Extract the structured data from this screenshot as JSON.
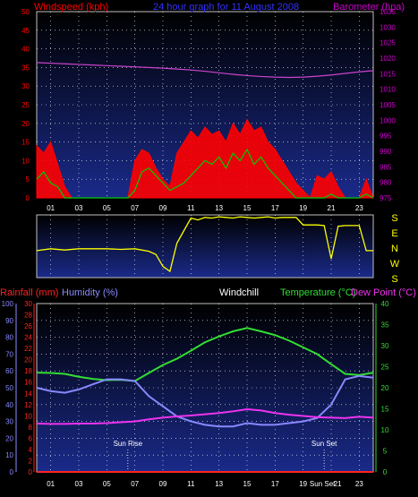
{
  "colors": {
    "background": "#000000",
    "plot_top": "#000000",
    "plot_bottom": "#1a2a8a",
    "grid": "#ffffff",
    "wind_axis": "#ff0000",
    "baro_axis": "#cc00cc",
    "wind_avg": "#00cc00",
    "wind_gust": "#ff0000",
    "baro_line": "#cc44cc",
    "dir_line": "#ffff00",
    "dir_labels": "#ffff00",
    "rain_axis": "#ff2222",
    "hum_axis": "#8888ff",
    "temp_axis": "#33dd33",
    "humidity_line": "#8888ff",
    "temp_line": "#33dd33",
    "dew_line": "#ee33ee",
    "rain_line": "#ff2222",
    "windchill": "#ffffff"
  },
  "top_chart": {
    "title": "24 hour graph for  11 August 2008",
    "left_label": "Windspeed (kph)",
    "right_label": "Barometer (hpa)",
    "left_ticks": [
      "0",
      "5",
      "10",
      "15",
      "20",
      "25",
      "30",
      "35",
      "40",
      "45",
      "50"
    ],
    "right_ticks": [
      "975",
      "980",
      "985",
      "990",
      "995",
      "1000",
      "1005",
      "1010",
      "1015",
      "1020",
      "1025",
      "1030",
      "1035"
    ],
    "x_ticks": [
      "01",
      "03",
      "05",
      "07",
      "09",
      "11",
      "13",
      "15",
      "17",
      "19",
      "21",
      "23"
    ]
  },
  "direction_chart": {
    "labels": [
      "S",
      "E",
      "N",
      "W",
      "S"
    ]
  },
  "bottom_chart": {
    "rain_label": "Rainfall (mm)",
    "hum_label": "Humidity (%)",
    "chill_label": "Windchill",
    "temp_label": "Temperature (°C)",
    "dew_label": "Dew Point (°C)",
    "hum_ticks": [
      "0",
      "10",
      "20",
      "30",
      "40",
      "50",
      "60",
      "70",
      "80",
      "90",
      "100"
    ],
    "rain_ticks": [
      "0",
      "2",
      "4",
      "6",
      "8",
      "10",
      "12",
      "14",
      "16",
      "18",
      "20",
      "22",
      "24",
      "26",
      "28",
      "30"
    ],
    "temp_ticks": [
      "0",
      "5",
      "10",
      "15",
      "20",
      "25",
      "30",
      "35",
      "40"
    ],
    "x_ticks": [
      "01",
      "03",
      "05",
      "07",
      "09",
      "11",
      "13",
      "15",
      "17",
      "19",
      "21",
      "23"
    ],
    "sunrise_label": "Sun Rise",
    "sunset_label": "Sun Set",
    "sunset_axis_label": "Sun Set",
    "sunset_axis_tick": "21"
  },
  "chart_data": [
    {
      "type": "line",
      "x_unit": "hour",
      "xlim": [
        0,
        24
      ],
      "ylim_left": [
        0,
        50
      ],
      "ylim_right": [
        975,
        1035
      ],
      "grid": true,
      "series": [
        {
          "name": "Windspeed (kph)",
          "axis": "left",
          "x": [
            0,
            0.5,
            1,
            1.5,
            2,
            2.5,
            3,
            3.5,
            4,
            4.5,
            5,
            5.5,
            6,
            6.5,
            7,
            7.5,
            8,
            8.5,
            9,
            9.5,
            10,
            10.5,
            11,
            11.5,
            12,
            12.5,
            13,
            13.5,
            14,
            14.5,
            15,
            15.5,
            16,
            16.5,
            17,
            17.5,
            18,
            18.5,
            19,
            19.5,
            20,
            20.5,
            21,
            21.5,
            22,
            22.5,
            23,
            23.5,
            24
          ],
          "y": [
            5,
            7,
            4,
            3,
            0,
            0,
            0,
            0,
            0,
            0,
            0,
            0,
            0,
            0,
            2,
            7,
            8,
            6,
            4,
            2,
            3,
            4,
            6,
            8,
            10,
            9,
            11,
            8,
            12,
            10,
            13,
            9,
            11,
            8,
            6,
            4,
            2,
            0,
            0,
            0,
            0,
            0,
            1,
            0,
            0,
            0,
            0,
            1,
            0
          ]
        },
        {
          "name": "Wind gust",
          "axis": "left",
          "x": [
            0,
            0.5,
            1,
            1.5,
            2,
            2.5,
            3,
            3.5,
            4,
            4.5,
            5,
            5.5,
            6,
            6.5,
            7,
            7.5,
            8,
            8.5,
            9,
            9.5,
            10,
            10.5,
            11,
            11.5,
            12,
            12.5,
            13,
            13.5,
            14,
            14.5,
            15,
            15.5,
            16,
            16.5,
            17,
            17.5,
            18,
            18.5,
            19,
            19.5,
            20,
            20.5,
            21,
            21.5,
            22,
            22.5,
            23,
            23.5,
            24
          ],
          "y": [
            14,
            12,
            15,
            9,
            3,
            0,
            0,
            0,
            0,
            0,
            0,
            0,
            0,
            0,
            10,
            13,
            12,
            8,
            5,
            3,
            12,
            15,
            18,
            16,
            19,
            17,
            18,
            15,
            20,
            17,
            21,
            18,
            19,
            15,
            13,
            10,
            7,
            4,
            2,
            0,
            6,
            5,
            7,
            3,
            0,
            0,
            0,
            5,
            0
          ]
        },
        {
          "name": "Barometer (hpa)",
          "axis": "right",
          "x": [
            0,
            1,
            2,
            3,
            4,
            5,
            6,
            7,
            8,
            9,
            10,
            11,
            12,
            13,
            14,
            15,
            16,
            17,
            18,
            19,
            20,
            21,
            22,
            23,
            24
          ],
          "y": [
            1018.6,
            1018.4,
            1018.2,
            1018.0,
            1017.8,
            1017.6,
            1017.4,
            1017.2,
            1017.0,
            1016.8,
            1016.5,
            1016.2,
            1015.8,
            1015.3,
            1014.8,
            1014.4,
            1014.1,
            1013.9,
            1013.8,
            1013.9,
            1014.2,
            1014.6,
            1015.1,
            1015.6,
            1016.0
          ]
        }
      ]
    },
    {
      "type": "line",
      "x_unit": "hour",
      "xlim": [
        0,
        24
      ],
      "series": [
        {
          "name": "Wind direction",
          "x": [
            0,
            1,
            2,
            3,
            4,
            5,
            6,
            7,
            8,
            8.5,
            9,
            9.5,
            10,
            10.5,
            11,
            11.5,
            12,
            12.5,
            13,
            13.5,
            14,
            14.5,
            15,
            15.5,
            16,
            16.5,
            17,
            17.5,
            18,
            18.5,
            19,
            19.5,
            20,
            20.5,
            21,
            21.5,
            22,
            22.5,
            23,
            23.5,
            24
          ],
          "y": [
            0.43,
            0.46,
            0.44,
            0.46,
            0.46,
            0.46,
            0.45,
            0.46,
            0.42,
            0.37,
            0.18,
            0.1,
            0.55,
            0.75,
            0.95,
            0.92,
            0.96,
            0.95,
            0.97,
            0.96,
            0.95,
            0.97,
            0.96,
            0.95,
            0.96,
            0.97,
            0.95,
            0.96,
            0.96,
            0.96,
            0.84,
            0.84,
            0.84,
            0.83,
            0.3,
            0.82,
            0.83,
            0.83,
            0.83,
            0.43,
            0.43
          ]
        }
      ]
    },
    {
      "type": "line",
      "x_unit": "hour",
      "xlim": [
        0,
        24
      ],
      "ylim_humidity": [
        0,
        100
      ],
      "ylim_rain": [
        0,
        30
      ],
      "ylim_temp": [
        0,
        40
      ],
      "grid": true,
      "series": [
        {
          "name": "Temperature (°C)",
          "axis": "temp",
          "x": [
            0,
            1,
            2,
            3,
            4,
            5,
            6,
            7,
            8,
            9,
            10,
            11,
            12,
            13,
            14,
            15,
            16,
            17,
            18,
            19,
            20,
            21,
            22,
            23,
            24
          ],
          "y": [
            23.6,
            23.5,
            23.3,
            22.6,
            22.1,
            21.8,
            21.9,
            21.6,
            23.5,
            25.4,
            26.9,
            28.8,
            30.8,
            32.2,
            33.4,
            34.2,
            33.4,
            32.5,
            31.2,
            29.6,
            28.0,
            25.6,
            23.3,
            23.0,
            23.6
          ]
        },
        {
          "name": "Humidity (%)",
          "axis": "humidity",
          "x": [
            0,
            1,
            2,
            3,
            4,
            5,
            6,
            7,
            8,
            9,
            10,
            11,
            12,
            13,
            14,
            15,
            16,
            17,
            18,
            19,
            20,
            21,
            22,
            23,
            24
          ],
          "y": [
            50,
            48,
            47,
            49,
            52,
            55,
            55,
            54,
            45,
            39,
            33,
            30,
            28,
            27,
            27,
            29,
            28,
            28,
            29,
            30,
            32,
            40,
            55,
            57,
            56
          ]
        },
        {
          "name": "Dew Point (°C)",
          "axis": "temp",
          "x": [
            0,
            1,
            2,
            3,
            4,
            5,
            6,
            7,
            8,
            9,
            10,
            11,
            12,
            13,
            14,
            15,
            16,
            17,
            18,
            19,
            20,
            21,
            22,
            23,
            24
          ],
          "y": [
            11.5,
            11.4,
            11.4,
            11.5,
            11.5,
            11.6,
            11.8,
            12.0,
            12.5,
            12.9,
            13.2,
            13.4,
            13.7,
            14.0,
            14.4,
            14.9,
            14.6,
            14.0,
            13.6,
            13.3,
            13.0,
            12.9,
            12.8,
            13.1,
            12.9
          ]
        },
        {
          "name": "Rainfall (mm)",
          "axis": "rain",
          "x": [
            0,
            24
          ],
          "y": [
            0,
            0
          ]
        }
      ],
      "annotations": [
        {
          "label": "Sun Rise",
          "x": 6.5
        },
        {
          "label": "Sun Set",
          "x": 20.5
        }
      ]
    }
  ]
}
